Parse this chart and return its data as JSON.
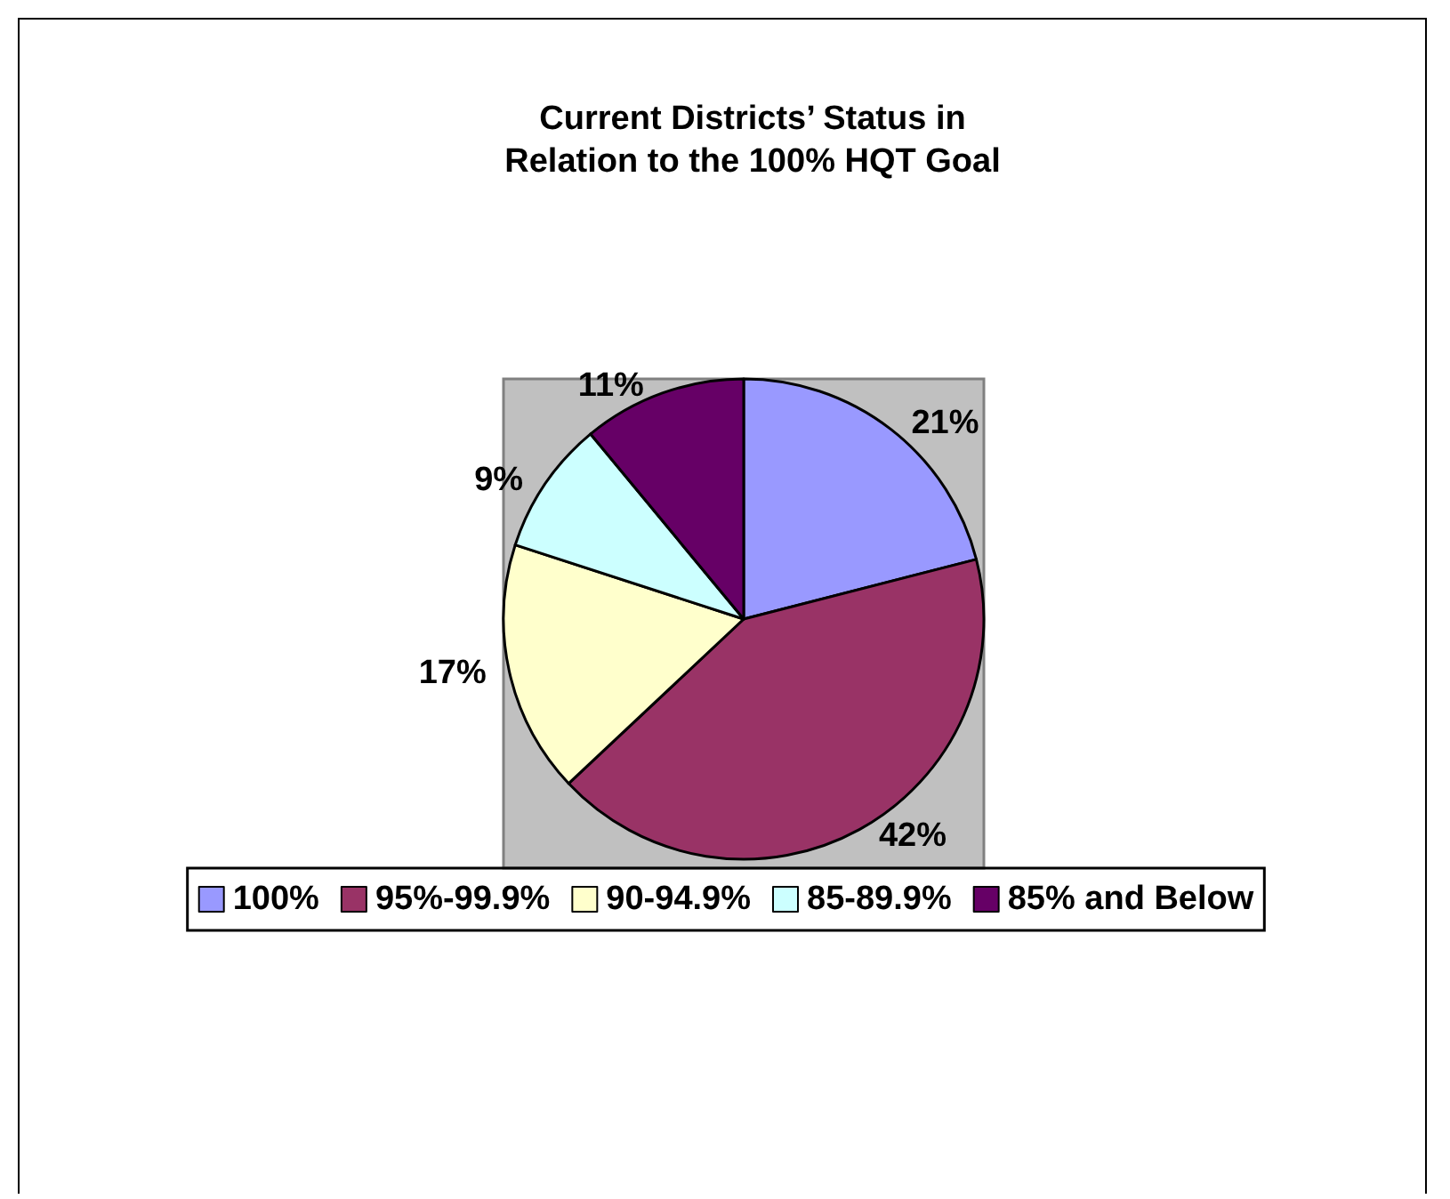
{
  "chart_data": {
    "type": "pie",
    "title": "Current Districts’ Status in\nRelation to the 100% HQT Goal",
    "categories": [
      "100%",
      "95%-99.9%",
      "90-94.9%",
      "85-89.9%",
      "85% and Below"
    ],
    "values": [
      21,
      42,
      17,
      9,
      11
    ],
    "colors": [
      "#9999ff",
      "#993366",
      "#ffffcc",
      "#ccffff",
      "#660066"
    ],
    "value_labels": [
      "21%",
      "42%",
      "17%",
      "9%",
      "11%"
    ],
    "legend": "bottom"
  }
}
